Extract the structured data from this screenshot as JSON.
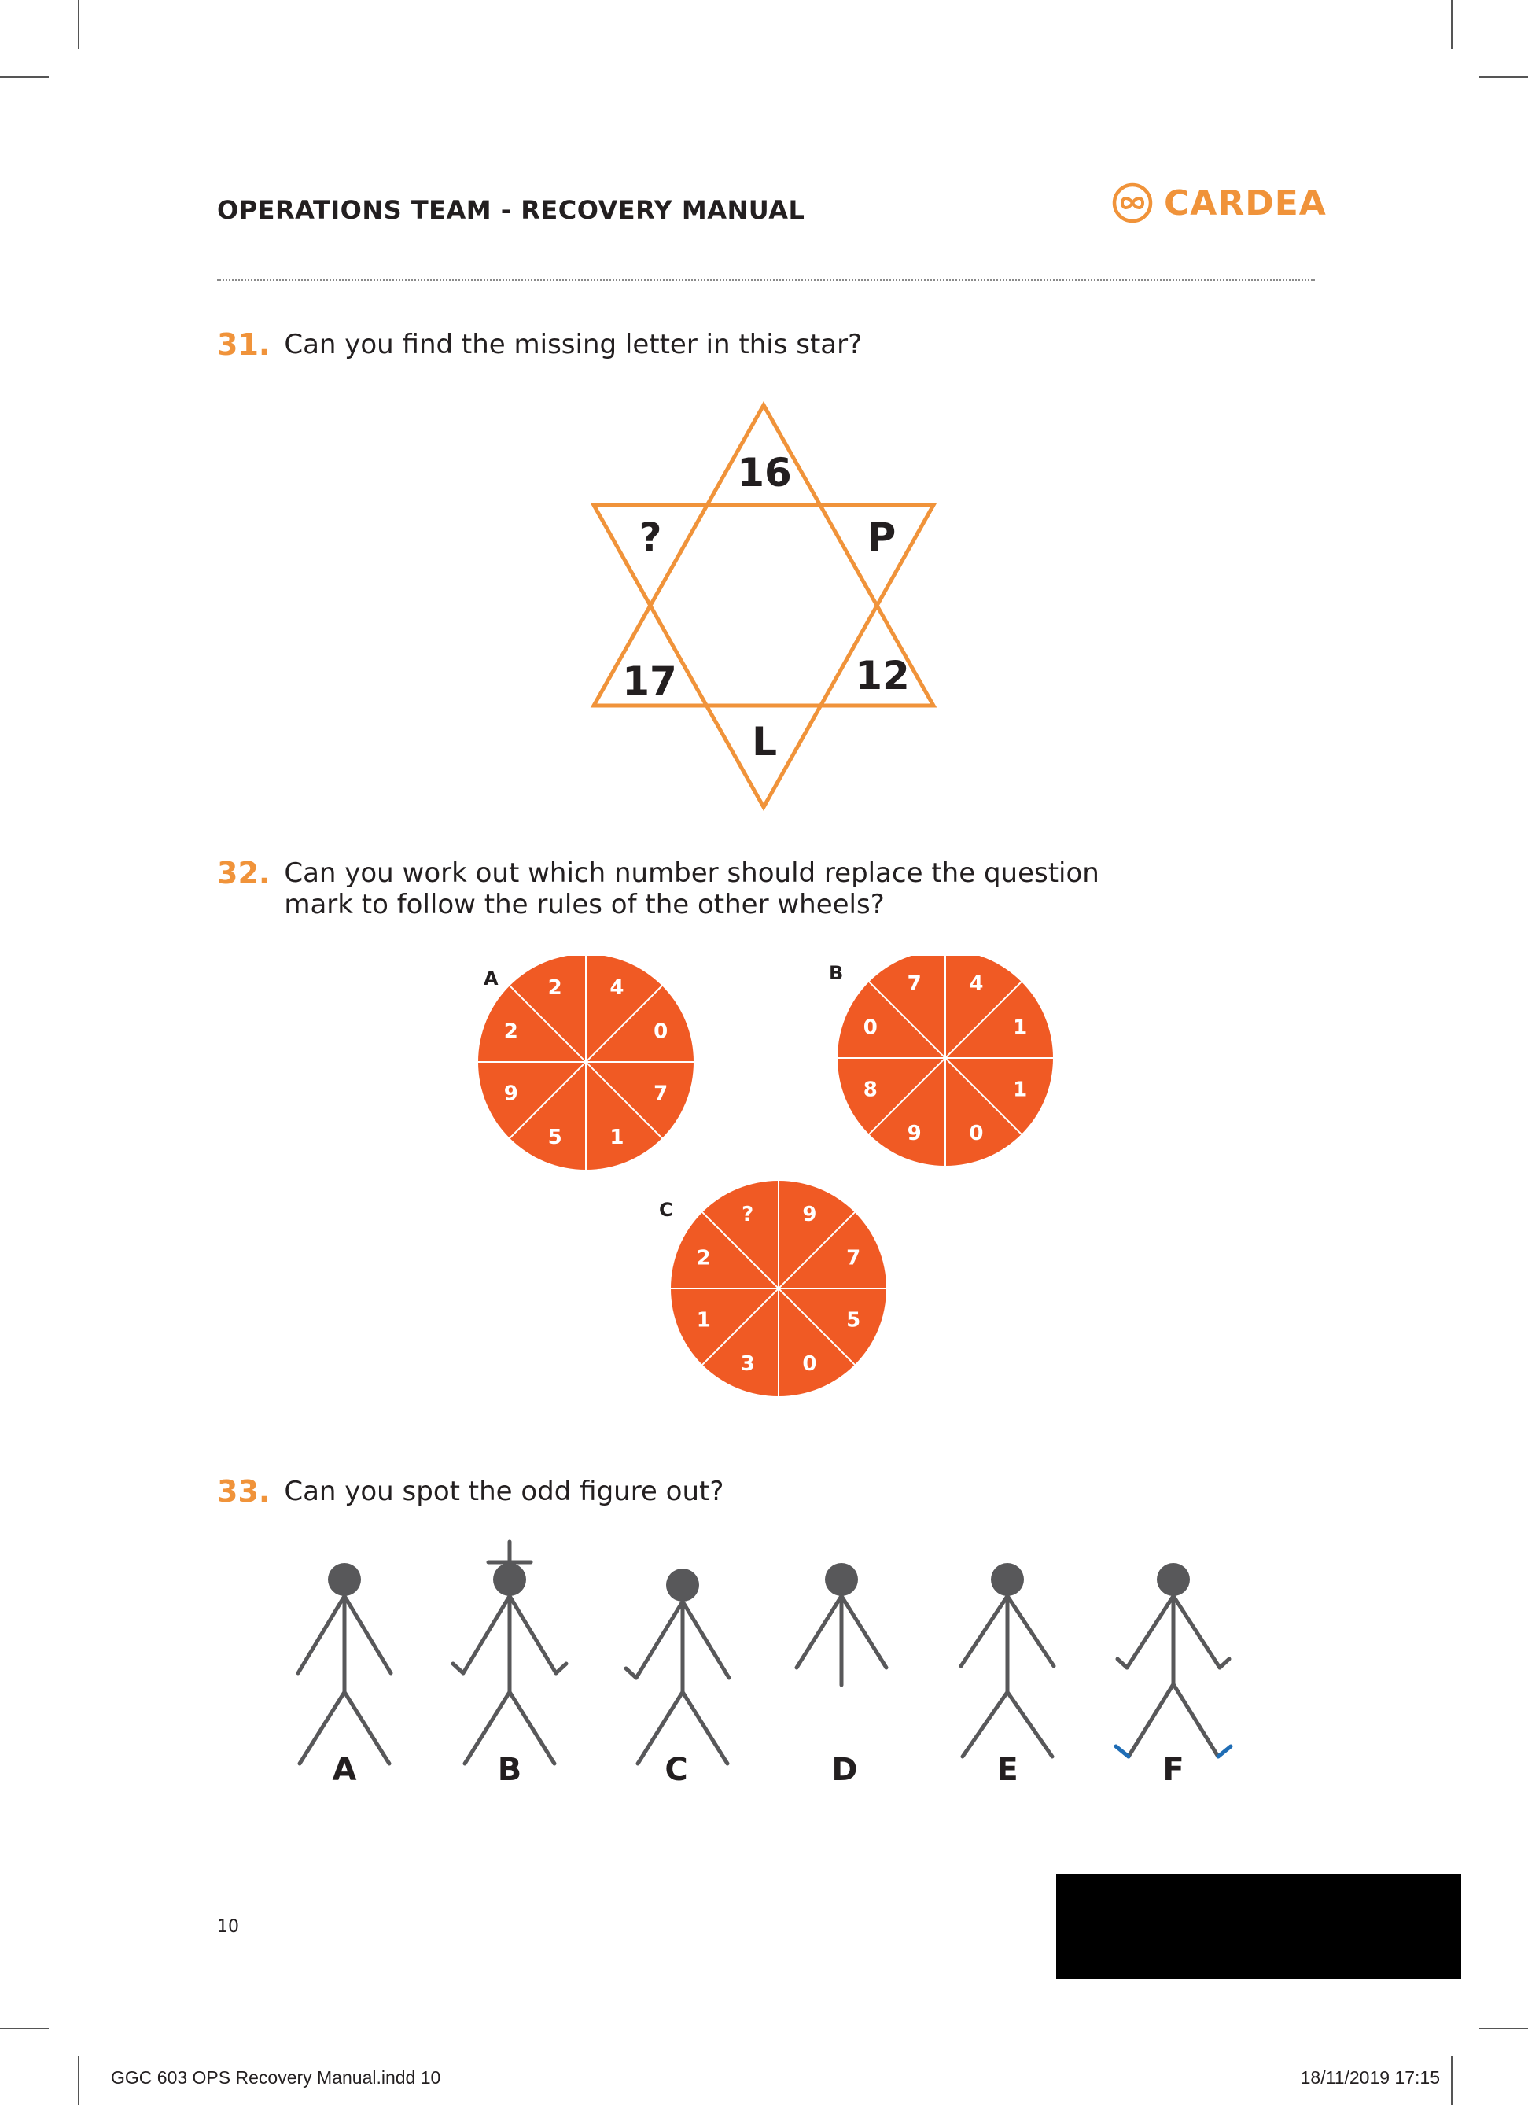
{
  "header": {
    "title": "OPERATIONS TEAM - RECOVERY MANUAL",
    "logo_text": "CARDEA",
    "brand_color": "#f0933a"
  },
  "questions": [
    {
      "number": "31.",
      "text": "Can you find the missing letter in this star?"
    },
    {
      "number": "32.",
      "text_line1": "Can you work out which number should replace the question",
      "text_line2": "mark to follow the rules of the other wheels?"
    },
    {
      "number": "33.",
      "text": "Can you spot the odd figure out?"
    }
  ],
  "star": {
    "top": "16",
    "upper_left": "?",
    "upper_right": "P",
    "lower_left": "17",
    "lower_right": "12",
    "bottom": "L",
    "stroke_color": "#f0933a"
  },
  "wheels": {
    "fill_color": "#f05a24",
    "items": [
      {
        "label": "A",
        "segments": [
          "4",
          "0",
          "7",
          "1",
          "5",
          "9",
          "2",
          "2"
        ]
      },
      {
        "label": "B",
        "segments": [
          "4",
          "1",
          "1",
          "0",
          "9",
          "8",
          "0",
          "7"
        ]
      },
      {
        "label": "C",
        "segments": [
          "9",
          "7",
          "5",
          "0",
          "3",
          "1",
          "2",
          "?"
        ]
      }
    ]
  },
  "figures": {
    "labels": [
      "A",
      "B",
      "C",
      "D",
      "E",
      "F"
    ],
    "figure_color": "#58585a",
    "accent_color": "#1f6db5"
  },
  "footer": {
    "page_number": "10",
    "slug_file": "GGC 603 OPS Recovery Manual.indd   10",
    "slug_date": "18/11/2019   17:15"
  }
}
